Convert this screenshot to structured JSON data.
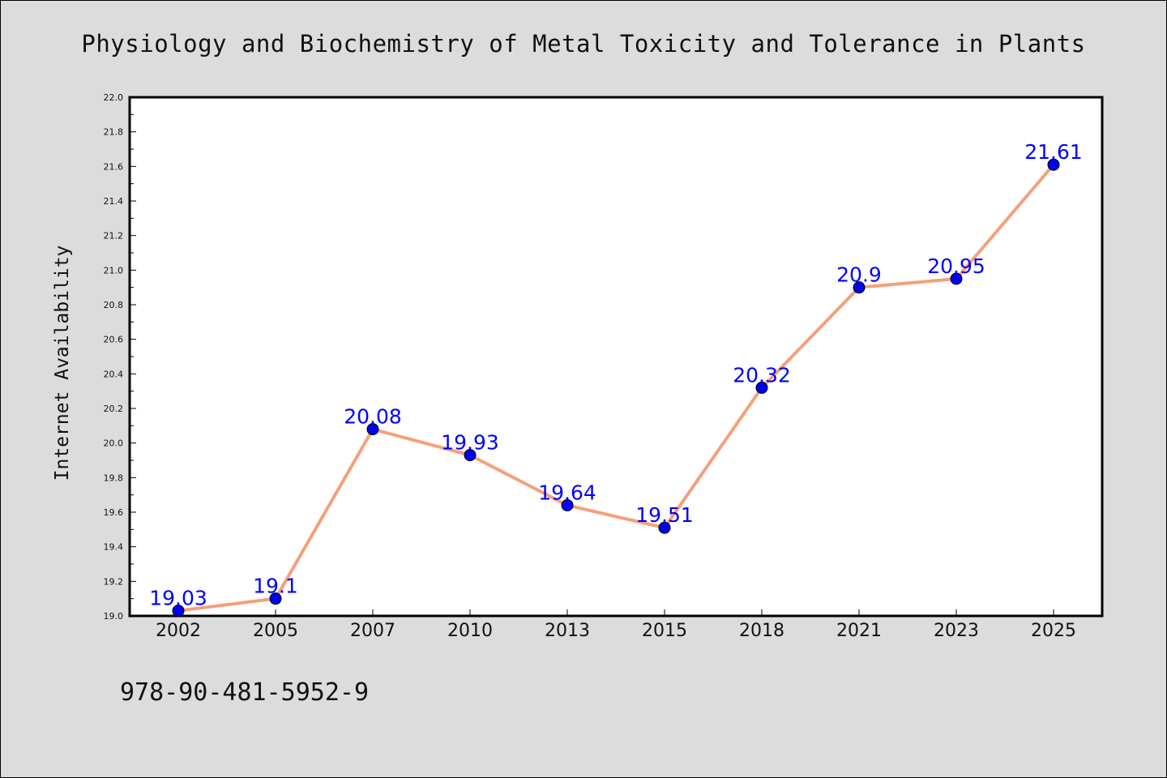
{
  "caption": "978-90-481-5952-9",
  "chart_data": {
    "type": "line",
    "title": "Physiology and Biochemistry of Metal Toxicity and Tolerance in Plants",
    "xlabel": "",
    "ylabel": "Internet Availability",
    "categories": [
      "2002",
      "2005",
      "2007",
      "2010",
      "2013",
      "2015",
      "2018",
      "2021",
      "2023",
      "2025"
    ],
    "values": [
      19.03,
      19.1,
      20.08,
      19.93,
      19.64,
      19.51,
      20.32,
      20.9,
      20.95,
      21.61
    ],
    "data_labels": [
      "19.03",
      "19.1",
      "20.08",
      "19.93",
      "19.64",
      "19.51",
      "20.32",
      "20.9",
      "20.95",
      "21.61"
    ],
    "ylim": [
      19.0,
      22.0
    ],
    "yticks": [
      "19.0",
      "19.2",
      "19.4",
      "19.6",
      "19.8",
      "20.0",
      "20.2",
      "20.4",
      "20.6",
      "20.8",
      "21.0",
      "21.2",
      "21.4",
      "21.6",
      "21.8",
      "22.0"
    ],
    "grid": false,
    "line_color": "#f4a07c",
    "marker_color": "#0000ee",
    "label_color": "#0000ff",
    "background": "#dcdcdc"
  }
}
